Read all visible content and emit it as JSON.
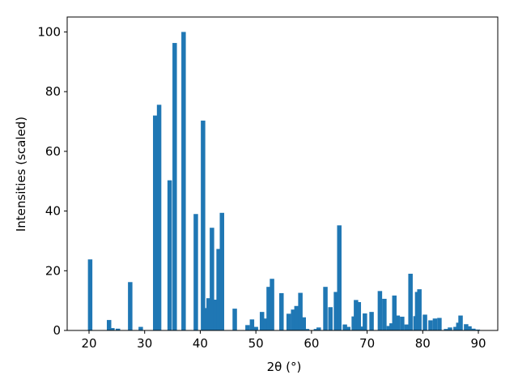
{
  "chart_data": {
    "type": "bar",
    "xlabel": "2θ (°)",
    "ylabel": "Intensities (scaled)",
    "color": "#1f77b4",
    "x": [
      20.2,
      23.6,
      24.2,
      25.2,
      27.4,
      29.3,
      31.9,
      32.6,
      34.5,
      35.4,
      37.0,
      39.2,
      40.5,
      41.0,
      41.5,
      42.1,
      42.7,
      43.3,
      43.9,
      46.2,
      48.5,
      49.3,
      50.0,
      51.1,
      51.7,
      52.3,
      52.9,
      54.6,
      55.9,
      56.7,
      57.3,
      58.0,
      58.6,
      59.2,
      60.8,
      61.3,
      62.5,
      63.4,
      64.4,
      65.0,
      66.0,
      66.6,
      67.6,
      68.0,
      68.5,
      69.1,
      69.6,
      70.8,
      72.3,
      73.1,
      73.9,
      74.4,
      74.9,
      75.5,
      76.3,
      77.1,
      77.8,
      78.7,
      79.0,
      79.4,
      80.4,
      81.4,
      82.2,
      83.0,
      84.2,
      84.9,
      85.9,
      86.4,
      86.8,
      87.8,
      88.4,
      89.1,
      89.9
    ],
    "values": [
      23.8,
      3.5,
      0.8,
      0.6,
      16.2,
      1.2,
      72,
      75.6,
      50.3,
      96.3,
      100,
      39,
      70.3,
      7.5,
      10.8,
      34.4,
      10.3,
      27.3,
      39.4,
      7.3,
      1.8,
      3.7,
      1.2,
      6.2,
      4.0,
      14.6,
      17.3,
      12.5,
      5.6,
      7.0,
      8.2,
      12.6,
      4.4,
      0.5,
      0.5,
      1.0,
      14.6,
      7.8,
      12.9,
      35.2,
      2.0,
      1.2,
      4.7,
      10.2,
      9.5,
      1.3,
      5.7,
      6.2,
      13.2,
      10.6,
      1.5,
      2.4,
      11.7,
      5.0,
      4.6,
      2.0,
      19.0,
      4.8,
      12.9,
      13.8,
      5.3,
      3.4,
      4.0,
      4.2,
      0.5,
      1.0,
      1.2,
      2.6,
      5.0,
      2.1,
      1.4,
      0.6,
      0.3
    ],
    "xlim": [
      16.07,
      93.49
    ],
    "ylim": [
      0,
      105
    ],
    "xticks": [
      20,
      30,
      40,
      50,
      60,
      70,
      80,
      90
    ],
    "yticks": [
      0,
      20,
      40,
      60,
      80,
      100
    ]
  }
}
